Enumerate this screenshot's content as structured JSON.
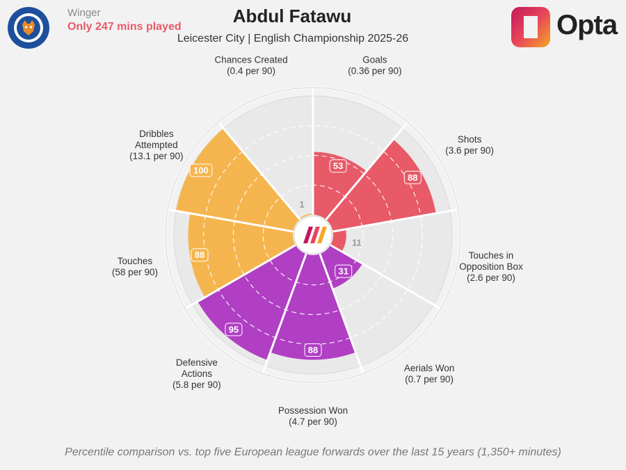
{
  "header": {
    "role": "Winger",
    "minutes_note": "Only 247 mins played",
    "title": "Abdul Fatawu",
    "subtitle": "Leicester City | English Championship 2025-26",
    "brand": "Opta"
  },
  "footer": {
    "note": "Percentile comparison vs. top five European league forwards over the last 15 years (1,350+ minutes)"
  },
  "colors": {
    "attacking": "#e85a68",
    "possession": "#b03fc4",
    "passing": "#f5b54e",
    "grid": "#ffffff",
    "background": "#f2f2f2"
  },
  "chart_data": {
    "type": "polar_bar",
    "scale_max": 100,
    "categories": [
      {
        "name": "Goals",
        "per90": "(0.36 per 90)",
        "percentile": 53,
        "group": "attacking"
      },
      {
        "name": "Shots",
        "per90": "(3.6 per 90)",
        "percentile": 88,
        "group": "attacking"
      },
      {
        "name": "Touches in Opposition Box",
        "per90": "(2.6 per 90)",
        "percentile": 11,
        "group": "attacking"
      },
      {
        "name": "Aerials Won",
        "per90": "(0.7 per 90)",
        "percentile": 31,
        "group": "possession"
      },
      {
        "name": "Possession Won",
        "per90": "(4.7 per 90)",
        "percentile": 88,
        "group": "possession"
      },
      {
        "name": "Defensive Actions",
        "per90": "(5.8 per 90)",
        "percentile": 95,
        "group": "possession"
      },
      {
        "name": "Touches",
        "per90": "(58 per 90)",
        "percentile": 88,
        "group": "passing"
      },
      {
        "name": "Dribbles Attempted",
        "per90": "(13.1 per 90)",
        "percentile": 100,
        "group": "passing"
      },
      {
        "name": "Chances Created",
        "per90": "(0.4 per 90)",
        "percentile": 1,
        "group": "passing"
      }
    ]
  }
}
